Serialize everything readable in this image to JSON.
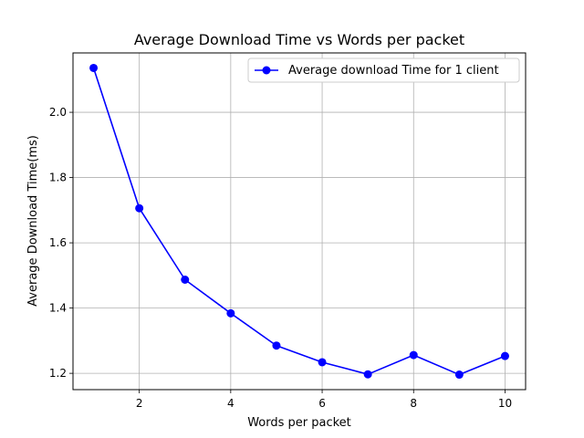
{
  "chart_data": {
    "type": "line",
    "title": "Average Download Time vs Words per packet",
    "xlabel": "Words per packet",
    "ylabel": "Average Download Time(ms)",
    "x": [
      1,
      2,
      3,
      4,
      5,
      6,
      7,
      8,
      9,
      10
    ],
    "series": [
      {
        "name": "Average download Time for 1 client",
        "color": "#0000ff",
        "values": [
          2.136,
          1.706,
          1.487,
          1.384,
          1.285,
          1.234,
          1.197,
          1.256,
          1.196,
          1.253
        ]
      }
    ],
    "xlim": [
      0.55,
      10.45
    ],
    "ylim": [
      1.15,
      2.182
    ],
    "xticks": [
      2,
      4,
      6,
      8,
      10
    ],
    "yticks": [
      1.2,
      1.4,
      1.6,
      1.8,
      2.0
    ],
    "xtick_labels": [
      "2",
      "4",
      "6",
      "8",
      "10"
    ],
    "ytick_labels": [
      "1.2",
      "1.4",
      "1.6",
      "1.8",
      "2.0"
    ],
    "grid": true,
    "legend_position": "upper right"
  }
}
